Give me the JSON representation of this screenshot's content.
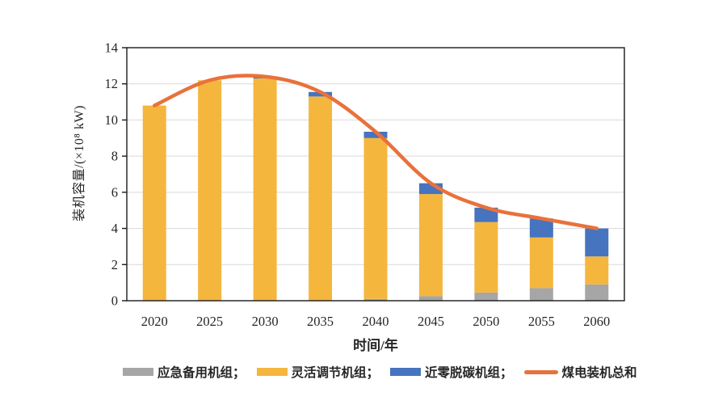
{
  "figure": {
    "background": "#ffffff",
    "text_color": "#262626",
    "frame_color": "#1a1a1a",
    "gridline_color": "#d9d9d9"
  },
  "chart_data": {
    "type": "bar",
    "subtype": "stacked-bars-with-total-line",
    "title": "",
    "xlabel": "时间/年",
    "ylabel": "装机容量/(×10⁸ kW)",
    "categories": [
      "2020",
      "2025",
      "2030",
      "2035",
      "2040",
      "2045",
      "2050",
      "2055",
      "2060"
    ],
    "series": [
      {
        "name": "应急备用机组",
        "type": "bar",
        "color": "#a6a6a6",
        "values": [
          0,
          0,
          0,
          0,
          0.1,
          0.25,
          0.45,
          0.7,
          0.9
        ]
      },
      {
        "name": "灵活调节机组",
        "type": "bar",
        "color": "#f5b63e",
        "values": [
          10.8,
          12.2,
          12.3,
          11.3,
          8.9,
          5.65,
          3.9,
          2.8,
          1.55
        ]
      },
      {
        "name": "近零脱碳机组",
        "type": "bar",
        "color": "#4674be",
        "values": [
          0,
          0,
          0.1,
          0.25,
          0.35,
          0.6,
          0.8,
          1.05,
          1.55
        ]
      },
      {
        "name": "煤电装机总和",
        "type": "line",
        "color": "#e9713b",
        "values": [
          10.8,
          12.2,
          12.4,
          11.55,
          9.35,
          6.5,
          5.15,
          4.55,
          4.0
        ]
      }
    ],
    "ylim": [
      0,
      14
    ],
    "ytick_step": 2,
    "yticks": [
      0,
      2,
      4,
      6,
      8,
      10,
      12,
      14
    ],
    "grid": "horizontal",
    "legend_position": "bottom"
  },
  "legend": {
    "items": [
      {
        "label": "应急备用机组；",
        "color": "#a6a6a6",
        "marker": "rect"
      },
      {
        "label": "灵活调节机组；",
        "color": "#f5b63e",
        "marker": "rect"
      },
      {
        "label": "近零脱碳机组；",
        "color": "#4674be",
        "marker": "rect"
      },
      {
        "label": "煤电装机总和",
        "color": "#e9713b",
        "marker": "line"
      }
    ]
  }
}
